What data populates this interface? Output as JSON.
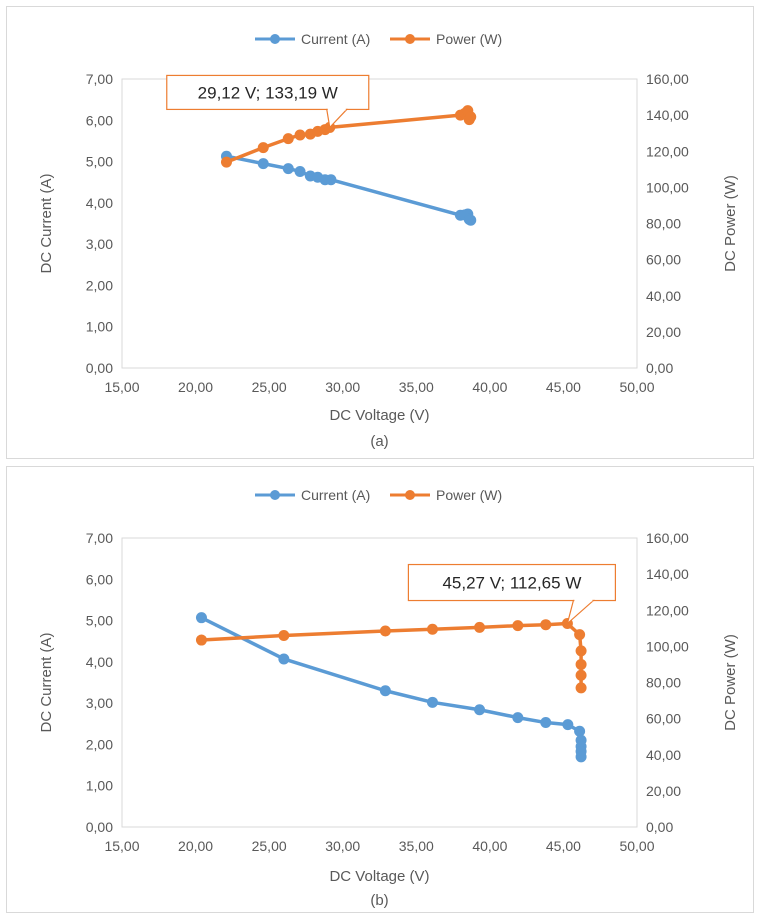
{
  "chart_data": [
    {
      "panel_label": "(a)",
      "type": "line",
      "xlabel": "DC Voltage (V)",
      "ylabel": "DC Current (A)",
      "y2label": "DC Power (W)",
      "xlim": [
        15,
        50
      ],
      "ylim": [
        0,
        7
      ],
      "y2lim": [
        0,
        160
      ],
      "x_ticks": [
        "15,00",
        "20,00",
        "25,00",
        "30,00",
        "35,00",
        "40,00",
        "45,00",
        "50,00"
      ],
      "y_ticks": [
        "0,00",
        "1,00",
        "2,00",
        "3,00",
        "4,00",
        "5,00",
        "6,00",
        "7,00"
      ],
      "y2_ticks": [
        "0,00",
        "20,00",
        "40,00",
        "60,00",
        "80,00",
        "100,00",
        "120,00",
        "140,00",
        "160,00"
      ],
      "grid": false,
      "legend_position": "top",
      "series": [
        {
          "name": "Current (A)",
          "color": "#5b9bd5",
          "axis": "left",
          "x": [
            22.1,
            24.6,
            26.3,
            27.1,
            27.8,
            28.3,
            28.8,
            29.2,
            38.0,
            38.3,
            38.5,
            38.6,
            38.7
          ],
          "y": [
            5.13,
            4.95,
            4.83,
            4.76,
            4.65,
            4.62,
            4.56,
            4.56,
            3.7,
            3.71,
            3.73,
            3.6,
            3.58
          ]
        },
        {
          "name": "Power (W)",
          "color": "#ed7d31",
          "axis": "right",
          "x": [
            22.1,
            24.6,
            26.3,
            27.1,
            27.8,
            28.3,
            28.8,
            29.12,
            38.0,
            38.3,
            38.5,
            38.6,
            38.7
          ],
          "y": [
            114,
            122,
            127,
            129,
            129.5,
            131,
            132,
            133.19,
            140,
            141,
            142.5,
            137.5,
            139
          ]
        }
      ],
      "annotation": {
        "text": "29,12 V; 133,19 W",
        "x": 29.12,
        "y": 133.19,
        "axis": "right"
      }
    },
    {
      "panel_label": "(b)",
      "type": "line",
      "xlabel": "DC Voltage (V)",
      "ylabel": "DC Current (A)",
      "y2label": "DC Power (W)",
      "xlim": [
        15,
        50
      ],
      "ylim": [
        0,
        7
      ],
      "y2lim": [
        0,
        160
      ],
      "x_ticks": [
        "15,00",
        "20,00",
        "25,00",
        "30,00",
        "35,00",
        "40,00",
        "45,00",
        "50,00"
      ],
      "y_ticks": [
        "0,00",
        "1,00",
        "2,00",
        "3,00",
        "4,00",
        "5,00",
        "6,00",
        "7,00"
      ],
      "y2_ticks": [
        "0,00",
        "20,00",
        "40,00",
        "60,00",
        "80,00",
        "100,00",
        "120,00",
        "140,00",
        "160,00"
      ],
      "grid": false,
      "legend_position": "top",
      "series": [
        {
          "name": "Current (A)",
          "color": "#5b9bd5",
          "axis": "left",
          "x": [
            20.4,
            26.0,
            32.9,
            36.1,
            39.3,
            41.9,
            43.8,
            45.3,
            46.1,
            46.2,
            46.2,
            46.2,
            46.2
          ],
          "y": [
            5.07,
            4.07,
            3.3,
            3.02,
            2.84,
            2.65,
            2.53,
            2.48,
            2.32,
            2.1,
            1.95,
            1.83,
            1.7
          ]
        },
        {
          "name": "Power (W)",
          "color": "#ed7d31",
          "axis": "right",
          "x": [
            20.4,
            26.0,
            32.9,
            36.1,
            39.3,
            41.9,
            43.8,
            45.27,
            46.1,
            46.2,
            46.2,
            46.2,
            46.2
          ],
          "y": [
            103.5,
            106,
            108.5,
            109.5,
            110.5,
            111.5,
            112,
            112.65,
            106.5,
            97.5,
            90,
            84,
            77
          ]
        }
      ],
      "annotation": {
        "text": "45,27 V; 112,65 W",
        "x": 45.27,
        "y": 112.65,
        "axis": "right"
      }
    }
  ]
}
